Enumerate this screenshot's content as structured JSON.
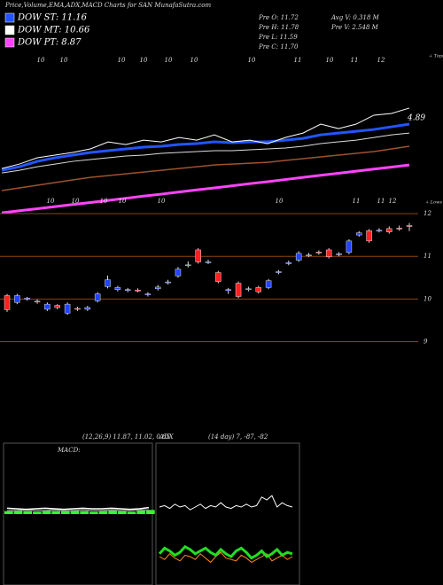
{
  "chart_data": [
    {
      "type": "line",
      "title": "Price,Volume,EMA,ADX,MACD Charts for SAN MunafaSutra.com",
      "info": [
        "Pre  O: 11.72",
        "Pre  H: 11.78",
        "Pre  L: 11.59",
        "Pre  C: 11.70",
        "Avg V: 0.318  M",
        "Pre  V: 2.548  M"
      ],
      "legend": [
        {
          "label": "DOW ST: 11.16",
          "color": "#2255ff"
        },
        {
          "label": "DOW MT: 10.66",
          "color": "#ffffff"
        },
        {
          "label": "DOW PT: 8.87",
          "color": "#ff44ff"
        }
      ],
      "annotations": [
        "+ Tops",
        "4.89",
        "+ Lows"
      ],
      "top_labels": [
        "10",
        "10",
        "10",
        "10",
        "10",
        "10",
        "10",
        "11",
        "10",
        "11",
        "12"
      ],
      "low_labels": [
        "10",
        "10",
        "10",
        "10",
        "10",
        "10",
        "11",
        "11",
        "12"
      ],
      "ylim": [
        5.94,
        15.24
      ],
      "series": [
        {
          "color": "#a0522d",
          "width": 1.5,
          "values": [
            7.43,
            7.58,
            7.73,
            7.88,
            8.03,
            8.17,
            8.27,
            8.37,
            8.47,
            8.57,
            8.67,
            8.77,
            8.87,
            8.92,
            8.97,
            9.02,
            9.12,
            9.22,
            9.32,
            9.42,
            9.52,
            9.62,
            9.77,
            9.92
          ]
        },
        {
          "color": "#ff44ff",
          "width": 3,
          "values": [
            6.18,
            6.3,
            6.41,
            6.53,
            6.65,
            6.76,
            6.88,
            7.0,
            7.12,
            7.23,
            7.35,
            7.47,
            7.58,
            7.7,
            7.82,
            7.93,
            8.05,
            8.17,
            8.29,
            8.4,
            8.52,
            8.64,
            8.75,
            8.87
          ]
        },
        {
          "color": "#dddddd",
          "width": 1,
          "values": [
            8.42,
            8.57,
            8.77,
            8.92,
            9.07,
            9.17,
            9.27,
            9.37,
            9.42,
            9.52,
            9.57,
            9.62,
            9.67,
            9.67,
            9.72,
            9.77,
            9.82,
            9.92,
            10.07,
            10.17,
            10.26,
            10.41,
            10.56,
            10.66
          ]
        },
        {
          "color": "#2255ff",
          "width": 3,
          "values": [
            8.57,
            8.77,
            9.07,
            9.27,
            9.42,
            9.57,
            9.67,
            9.77,
            9.87,
            9.92,
            10.02,
            10.07,
            10.17,
            10.12,
            10.17,
            10.17,
            10.26,
            10.36,
            10.56,
            10.66,
            10.76,
            10.86,
            11.01,
            11.16
          ]
        },
        {
          "color": "#ffffff",
          "width": 1,
          "values": [
            8.67,
            8.92,
            9.27,
            9.42,
            9.57,
            9.77,
            10.16,
            10.01,
            10.26,
            10.16,
            10.41,
            10.26,
            10.56,
            10.16,
            10.26,
            10.06,
            10.41,
            10.66,
            11.16,
            10.91,
            11.16,
            11.66,
            11.76,
            12.06
          ]
        }
      ]
    },
    {
      "type": "candlestick",
      "ylim": [
        8.7,
        12.27
      ],
      "yticks": [
        12,
        11,
        10,
        9
      ],
      "up_color": "#2244ff",
      "down_color": "#ff2020",
      "grid_color": "#8b4513",
      "open": [
        10.08,
        9.92,
        10.0,
        9.95,
        9.76,
        9.85,
        9.67,
        9.78,
        9.76,
        9.96,
        10.29,
        10.22,
        10.2,
        10.21,
        10.1,
        10.24,
        10.38,
        10.54,
        10.78,
        11.15,
        10.86,
        10.62,
        10.2,
        10.37,
        10.22,
        10.27,
        10.27,
        10.62,
        10.83,
        10.91,
        11.02,
        11.1,
        11.15,
        11.04,
        11.09,
        11.5,
        11.6,
        11.6,
        11.65,
        11.66,
        11.72
      ],
      "high": [
        10.12,
        10.12,
        10.05,
        9.99,
        9.92,
        9.88,
        9.92,
        9.82,
        9.84,
        10.16,
        10.55,
        10.31,
        10.26,
        10.25,
        10.16,
        10.33,
        10.45,
        10.75,
        10.88,
        11.19,
        10.92,
        10.66,
        10.26,
        10.41,
        10.29,
        10.31,
        10.47,
        10.68,
        10.9,
        11.12,
        11.08,
        11.14,
        11.19,
        11.1,
        11.4,
        11.59,
        11.64,
        11.66,
        11.7,
        11.72,
        11.78
      ],
      "low": [
        9.7,
        9.88,
        9.96,
        9.89,
        9.72,
        9.76,
        9.63,
        9.72,
        9.72,
        9.92,
        10.25,
        10.18,
        10.16,
        10.16,
        10.06,
        10.2,
        10.34,
        10.5,
        10.74,
        10.83,
        10.82,
        10.37,
        10.12,
        10.02,
        10.18,
        10.13,
        10.23,
        10.58,
        10.79,
        10.87,
        10.98,
        11.04,
        10.95,
        11.0,
        11.05,
        11.46,
        11.32,
        11.56,
        11.53,
        11.6,
        11.59
      ],
      "close": [
        9.75,
        10.08,
        10.02,
        9.93,
        9.88,
        9.8,
        9.88,
        9.76,
        9.8,
        10.12,
        10.45,
        10.27,
        10.22,
        10.2,
        10.12,
        10.28,
        10.4,
        10.7,
        10.8,
        10.87,
        10.87,
        10.41,
        10.22,
        10.06,
        10.24,
        10.17,
        10.43,
        10.64,
        10.85,
        11.07,
        11.03,
        11.08,
        10.99,
        11.06,
        11.36,
        11.55,
        11.36,
        11.61,
        11.57,
        11.64,
        11.7
      ]
    },
    {
      "type": "line",
      "label": "MACD:",
      "subtitle": "(12,26,9) 11.87, 11.02, 0.85",
      "ylim": [
        -12,
        12
      ],
      "histogram": {
        "color": "#33ff33",
        "values": [
          0.5,
          0.6,
          0.5,
          0.4,
          0.6,
          0.5,
          0.6,
          0.7,
          0.5,
          0.4,
          0.5,
          0.6,
          0.5,
          0.4,
          0.6,
          0.7
        ]
      },
      "series": [
        {
          "color": "#888888",
          "width": 1.5,
          "values": [
            0.6,
            0.6,
            0.7,
            0.6,
            0.6,
            0.7,
            0.6,
            0.6,
            0.7,
            0.6,
            0.6,
            0.7,
            0.6,
            0.6,
            0.7,
            0.7
          ]
        },
        {
          "color": "#ffffff",
          "width": 1.5,
          "values": [
            1.0,
            0.9,
            0.8,
            0.9,
            1.0,
            0.9,
            0.8,
            0.9,
            1.0,
            0.9,
            0.9,
            1.0,
            0.9,
            0.8,
            0.9,
            1.1
          ]
        }
      ]
    },
    {
      "type": "line",
      "label": "ADX",
      "subtitle": "(14 day) 7, -87, -82",
      "ylim": [
        0,
        100
      ],
      "series": [
        {
          "color": "#ff8c1a",
          "width": 1,
          "values": [
            20,
            18,
            22,
            19,
            17,
            21,
            20,
            18,
            22,
            19,
            16,
            20,
            23,
            19,
            18,
            17,
            21,
            19,
            16,
            18,
            20,
            22,
            17,
            19,
            21,
            18,
            20
          ]
        },
        {
          "color": "#22dd22",
          "width": 3,
          "values": [
            22,
            26,
            24,
            21,
            23,
            27,
            25,
            22,
            24,
            26,
            23,
            21,
            25,
            22,
            20,
            24,
            26,
            23,
            19,
            21,
            24,
            20,
            22,
            25,
            21,
            23,
            22
          ]
        },
        {
          "color": "#ffffff",
          "width": 1,
          "values": [
            55,
            56,
            54,
            57,
            55,
            56,
            53,
            55,
            57,
            54,
            56,
            55,
            58,
            55,
            54,
            56,
            55,
            57,
            55,
            56,
            62,
            60,
            63,
            55,
            58,
            56,
            55
          ]
        }
      ]
    }
  ]
}
